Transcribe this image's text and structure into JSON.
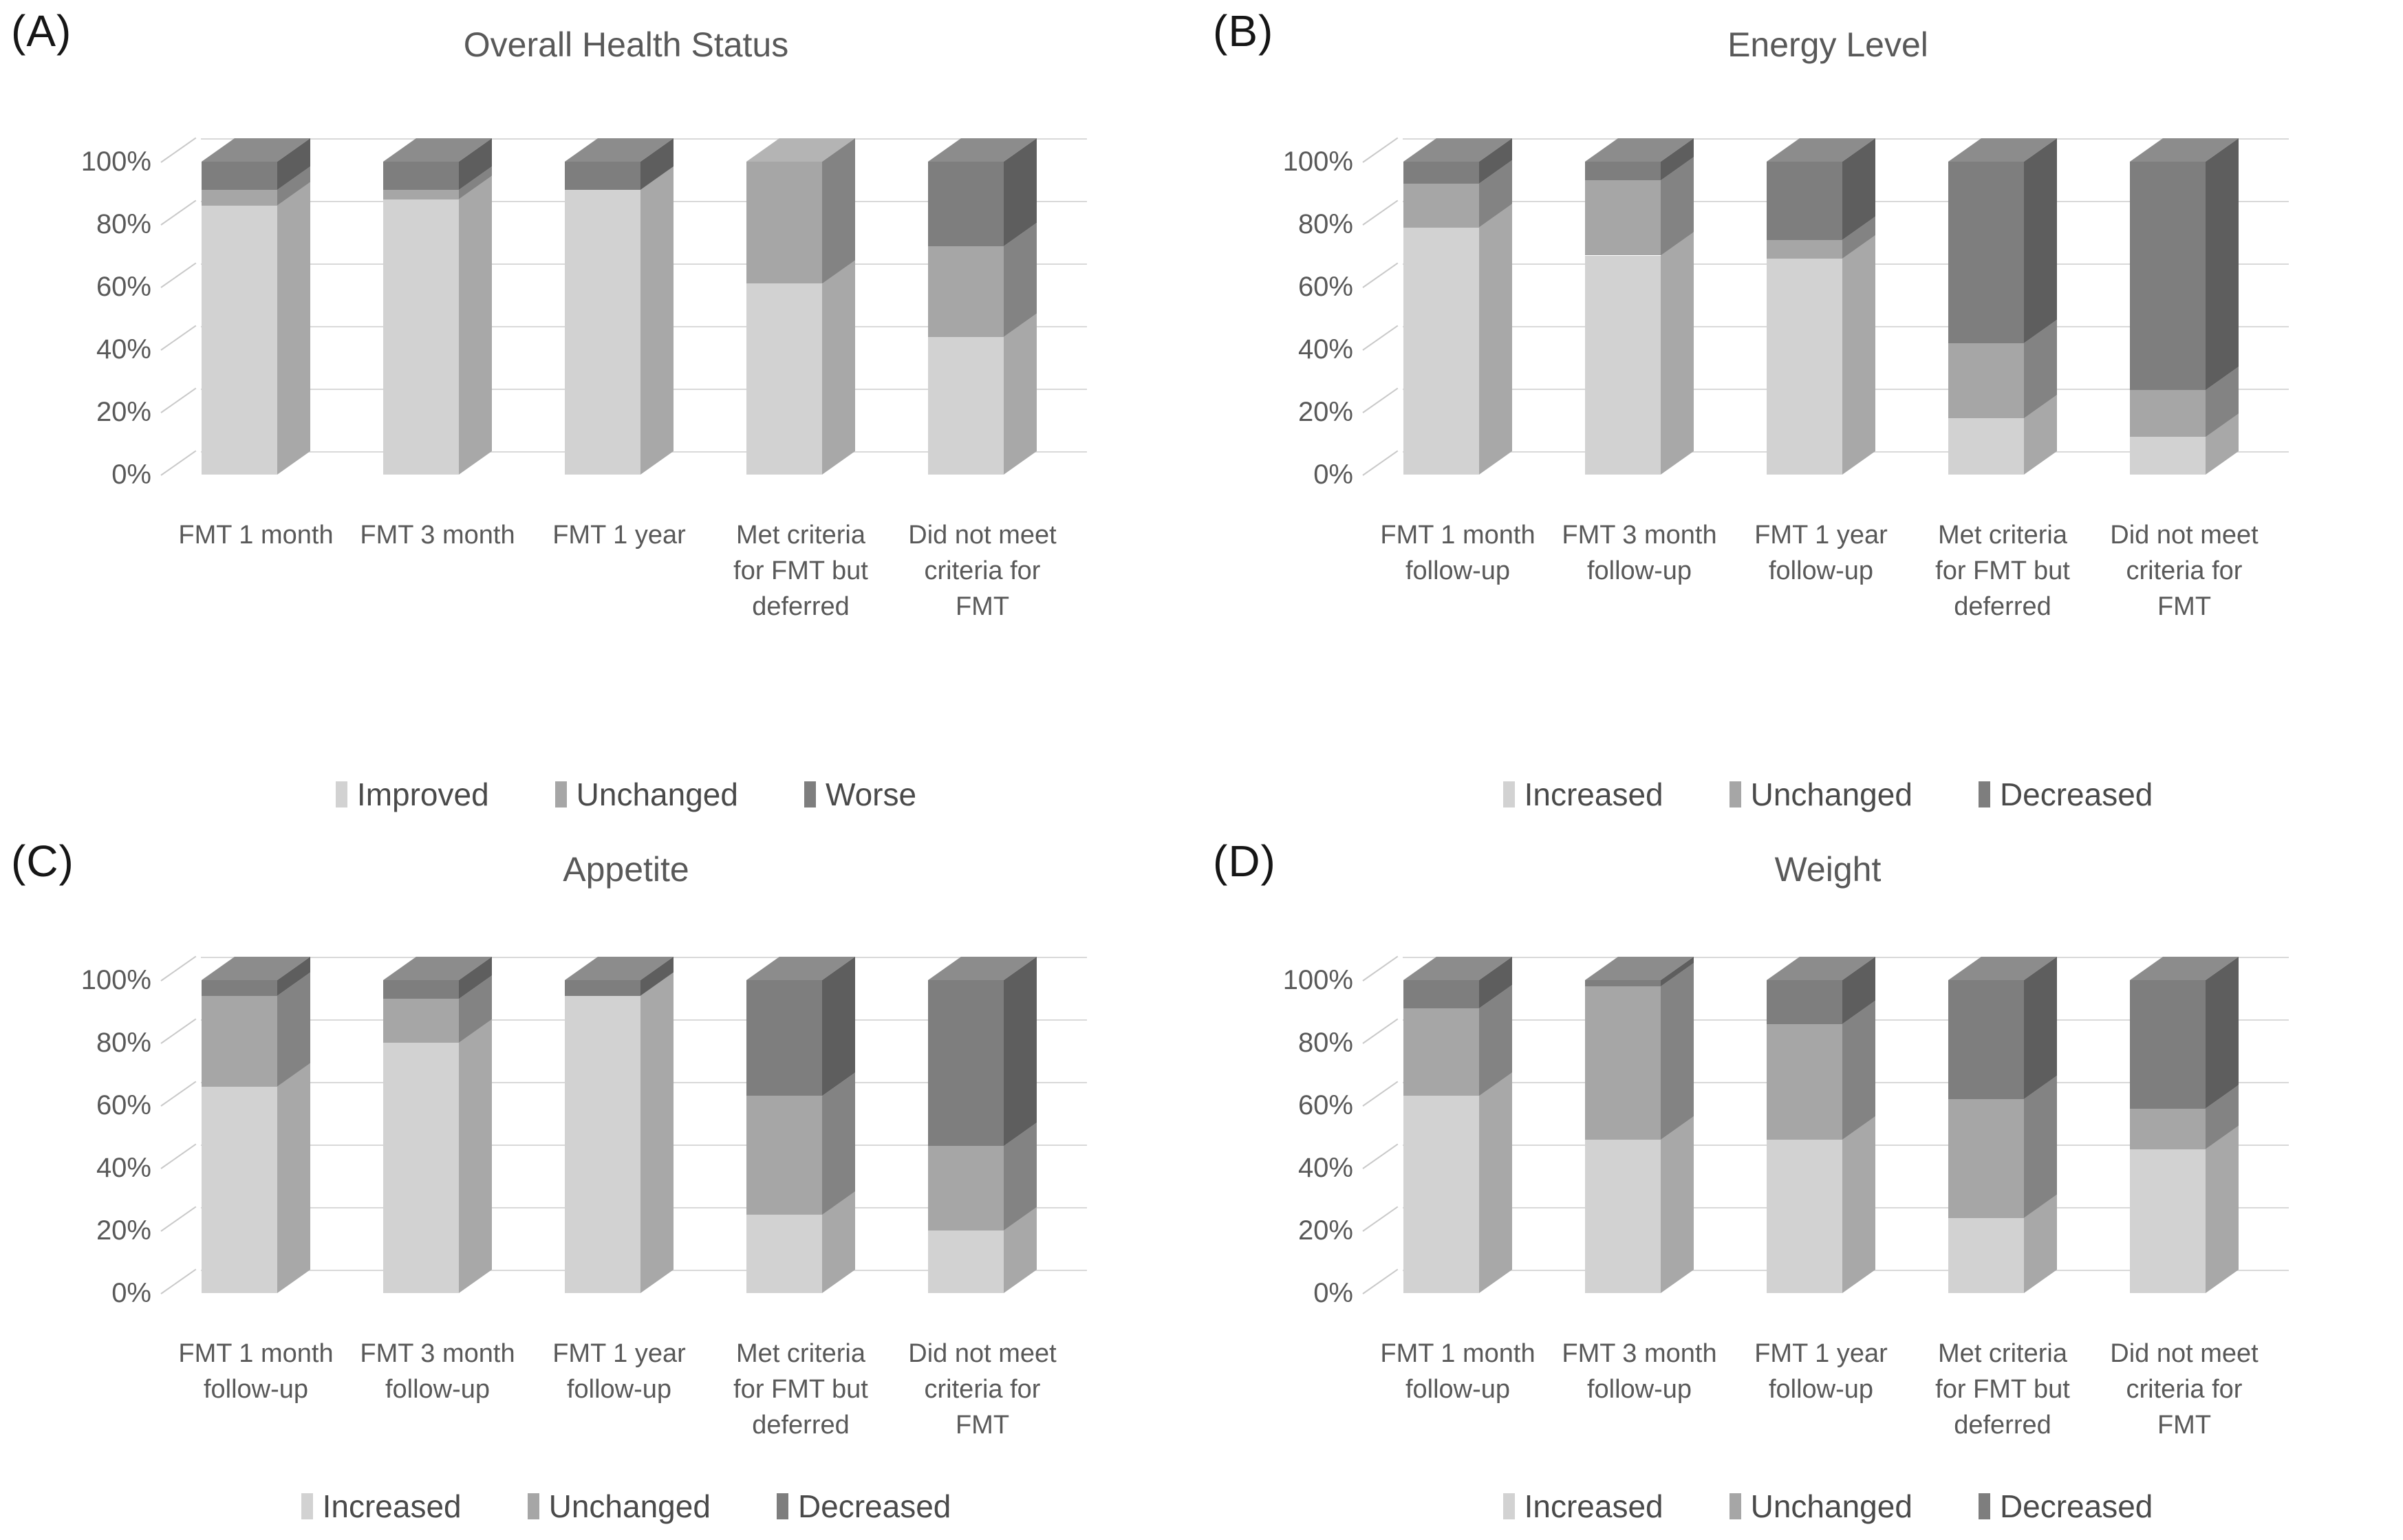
{
  "page_background": "#ffffff",
  "series_styles": [
    {
      "key": "light",
      "front": "#d2d2d2",
      "side": "#a8a8a8",
      "top": "#dedede"
    },
    {
      "key": "medium",
      "front": "#a6a6a6",
      "side": "#838383",
      "top": "#b4b4b4"
    },
    {
      "key": "dark",
      "front": "#7e7e7e",
      "side": "#5e5e5e",
      "top": "#8c8c8c"
    }
  ],
  "grid_color": "#d9d9d9",
  "chart_data": [
    {
      "type": "bar",
      "stacked": true,
      "units": "percent",
      "letter": "(A)",
      "title": "Overall Health Status",
      "ylim": [
        0,
        100
      ],
      "yticks": [
        "0%",
        "20%",
        "40%",
        "60%",
        "80%",
        "100%"
      ],
      "grid": true,
      "legend_position": "bottom",
      "categories": [
        [
          "FMT 1 month"
        ],
        [
          "FMT 3 month"
        ],
        [
          "FMT 1 year"
        ],
        [
          "Met criteria",
          "for FMT but",
          "deferred"
        ],
        [
          "Did not meet",
          "criteria for",
          "FMT"
        ]
      ],
      "series": [
        {
          "name": "Improved",
          "values": [
            86,
            88,
            91,
            61,
            44
          ]
        },
        {
          "name": "Unchanged",
          "values": [
            5,
            3,
            0,
            39,
            29
          ]
        },
        {
          "name": "Worse",
          "values": [
            9,
            9,
            9,
            0,
            27
          ]
        }
      ]
    },
    {
      "type": "bar",
      "stacked": true,
      "units": "percent",
      "letter": "(B)",
      "title": "Energy Level",
      "ylim": [
        0,
        100
      ],
      "yticks": [
        "0%",
        "20%",
        "40%",
        "60%",
        "80%",
        "100%"
      ],
      "grid": true,
      "legend_position": "bottom",
      "categories": [
        [
          "FMT 1 month",
          "follow-up"
        ],
        [
          "FMT 3 month",
          "follow-up"
        ],
        [
          "FMT 1 year",
          "follow-up"
        ],
        [
          "Met criteria",
          "for FMT but",
          "deferred"
        ],
        [
          "Did not meet",
          "criteria for",
          "FMT"
        ]
      ],
      "series": [
        {
          "name": "Increased",
          "values": [
            79,
            70,
            69,
            18,
            12
          ]
        },
        {
          "name": "Unchanged",
          "values": [
            14,
            24,
            6,
            24,
            15
          ]
        },
        {
          "name": "Decreased",
          "values": [
            7,
            6,
            25,
            58,
            73
          ]
        }
      ]
    },
    {
      "type": "bar",
      "stacked": true,
      "units": "percent",
      "letter": "(C)",
      "title": "Appetite",
      "ylim": [
        0,
        100
      ],
      "yticks": [
        "0%",
        "20%",
        "40%",
        "60%",
        "80%",
        "100%"
      ],
      "grid": true,
      "legend_position": "bottom",
      "categories": [
        [
          "FMT 1 month",
          "follow-up"
        ],
        [
          "FMT 3 month",
          "follow-up"
        ],
        [
          "FMT 1 year",
          "follow-up"
        ],
        [
          "Met criteria",
          "for FMT but",
          "deferred"
        ],
        [
          "Did not meet",
          "criteria for",
          "FMT"
        ]
      ],
      "series": [
        {
          "name": "Increased",
          "values": [
            66,
            80,
            95,
            25,
            20
          ]
        },
        {
          "name": "Unchanged",
          "values": [
            29,
            14,
            0,
            38,
            27
          ]
        },
        {
          "name": "Decreased",
          "values": [
            5,
            6,
            5,
            37,
            53
          ]
        }
      ]
    },
    {
      "type": "bar",
      "stacked": true,
      "units": "percent",
      "letter": "(D)",
      "title": "Weight",
      "ylim": [
        0,
        100
      ],
      "yticks": [
        "0%",
        "20%",
        "40%",
        "60%",
        "80%",
        "100%"
      ],
      "grid": true,
      "legend_position": "bottom",
      "categories": [
        [
          "FMT 1 month",
          "follow-up"
        ],
        [
          "FMT 3 month",
          "follow-up"
        ],
        [
          "FMT 1 year",
          "follow-up"
        ],
        [
          "Met criteria",
          "for FMT but",
          "deferred"
        ],
        [
          "Did not meet",
          "criteria for",
          "FMT"
        ]
      ],
      "series": [
        {
          "name": "Increased",
          "values": [
            63,
            49,
            49,
            24,
            46
          ]
        },
        {
          "name": "Unchanged",
          "values": [
            28,
            49,
            37,
            38,
            13
          ]
        },
        {
          "name": "Decreased",
          "values": [
            9,
            2,
            14,
            38,
            41
          ]
        }
      ]
    }
  ]
}
